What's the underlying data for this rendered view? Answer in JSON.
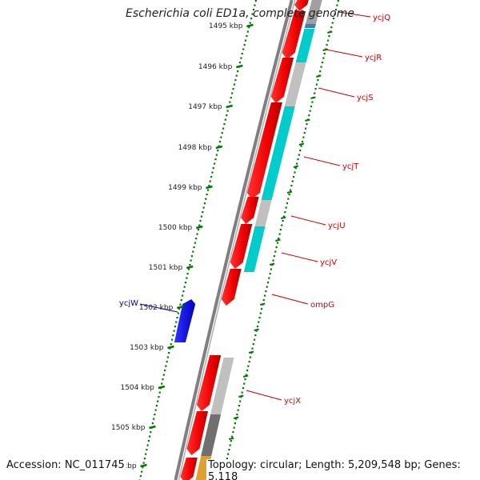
{
  "title": "Escherichia coli ED1a, complete genome",
  "footer": {
    "accession": "Accession: NC_011745",
    "topology": "Topology: circular; Length: 5,209,548 bp; Genes: 5,118"
  },
  "ticks": [
    {
      "label": "1495 kbp"
    },
    {
      "label": "1496 kbp"
    },
    {
      "label": "1497 kbp"
    },
    {
      "label": "1498 kbp"
    },
    {
      "label": "1499 kbp"
    },
    {
      "label": "1500 kbp"
    },
    {
      "label": "1501 kbp"
    },
    {
      "label": "1502 kbp"
    },
    {
      "label": "1503 kbp"
    },
    {
      "label": "1504 kbp"
    },
    {
      "label": "1505 kbp"
    },
    {
      "label": "kbp"
    }
  ],
  "genes": [
    {
      "name": "ycjQ",
      "color": "#cc0000"
    },
    {
      "name": "ycjR",
      "color": "#cc0000"
    },
    {
      "name": "ycjS",
      "color": "#cc0000"
    },
    {
      "name": "ycjT",
      "color": "#cc0000"
    },
    {
      "name": "ycjU",
      "color": "#cc0000"
    },
    {
      "name": "ycjV",
      "color": "#cc0000"
    },
    {
      "name": "ompG",
      "color": "#cc0000"
    },
    {
      "name": "ycjX",
      "color": "#cc0000"
    },
    {
      "name": "ycjW",
      "color": "#0000aa"
    }
  ],
  "colors": {
    "backbone": "#808080",
    "forward_cds": "#ee0000",
    "reverse_cds": "#0000ee",
    "similarity_high": "#00cccc",
    "similarity_mid": "#c0c0c0",
    "similarity_low": "#707070",
    "tick": "#007700"
  }
}
